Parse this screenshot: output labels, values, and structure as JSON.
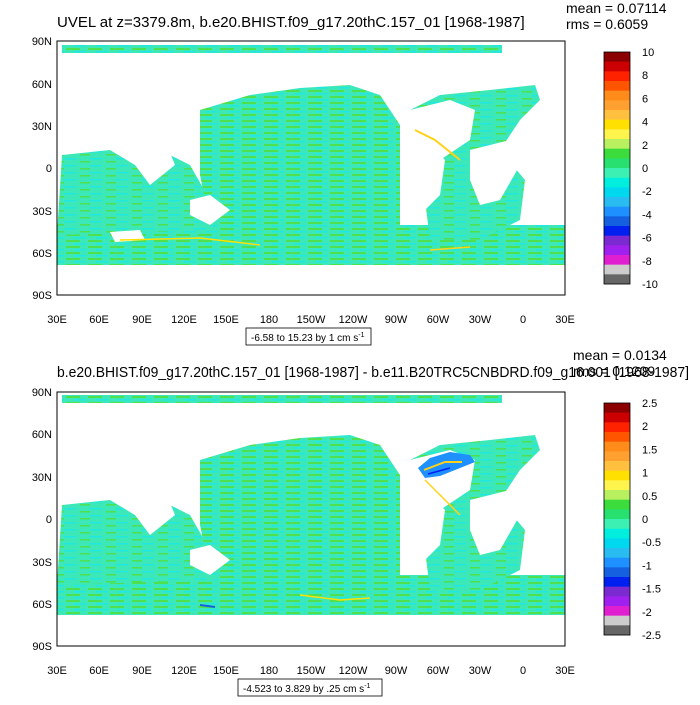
{
  "panels": [
    {
      "title": "UVEL at z=3379.8m, b.e20.BHIST.f09_g17.20thC.157_01 [1968-1987]",
      "mean": "mean = 0.07114",
      "rms": "rms = 0.6059",
      "contour_info": "-6.58 to 15.23 by 1 cm s",
      "contour_unit_exp": "-1",
      "colorbar": {
        "labels": [
          "10",
          "8",
          "6",
          "4",
          "2",
          "0",
          "-2",
          "-4",
          "-6",
          "-8",
          "-10"
        ],
        "colors": [
          "#8b0000",
          "#cc0000",
          "#ff2200",
          "#ff5500",
          "#ff8c1a",
          "#ffa030",
          "#ffc040",
          "#ffe000",
          "#fff34d",
          "#b8f060",
          "#3cdc3c",
          "#28e070",
          "#3cf0b4",
          "#00eedd",
          "#00d8f0",
          "#28bcf0",
          "#1e90ff",
          "#1460e0",
          "#0020f0",
          "#7a2ad0",
          "#a020f0",
          "#e020d0",
          "#cccccc",
          "#666666"
        ]
      }
    },
    {
      "title": "b.e20.BHIST.f09_g17.20thC.157_01 [1968-1987] - b.e11.B20TRC5CNBDRD.f09_g16.001 [1968-1987]",
      "mean": "mean = 0.0134",
      "rms": "rms = 0.1209",
      "contour_info": "-4.523 to 3.829 by .25 cm s",
      "contour_unit_exp": "-1",
      "colorbar": {
        "labels": [
          "2.5",
          "2",
          "1.5",
          "1",
          "0.5",
          "0",
          "-0.5",
          "-1",
          "-1.5",
          "-2",
          "-2.5"
        ],
        "colors": [
          "#8b0000",
          "#cc0000",
          "#ff2200",
          "#ff5500",
          "#ff8c1a",
          "#ffa030",
          "#ffc040",
          "#ffe000",
          "#fff34d",
          "#b8f060",
          "#3cdc3c",
          "#28e070",
          "#3cf0b4",
          "#00eedd",
          "#00d8f0",
          "#28bcf0",
          "#1e90ff",
          "#1460e0",
          "#0020f0",
          "#7a2ad0",
          "#a020f0",
          "#e020d0",
          "#cccccc",
          "#666666"
        ]
      }
    }
  ],
  "axes": {
    "lat_labels": [
      "90N",
      "60N",
      "30N",
      "0",
      "30S",
      "60S",
      "90S"
    ],
    "lon_labels": [
      "30E",
      "60E",
      "90E",
      "120E",
      "150E",
      "180",
      "150W",
      "120W",
      "90W",
      "60W",
      "30W",
      "0",
      "30E"
    ]
  },
  "colors": {
    "ocean_main": "#3ce8b8",
    "ocean_green": "#4ee04e",
    "ocean_cyan": "#20e8e0",
    "land": "#ffffff"
  }
}
